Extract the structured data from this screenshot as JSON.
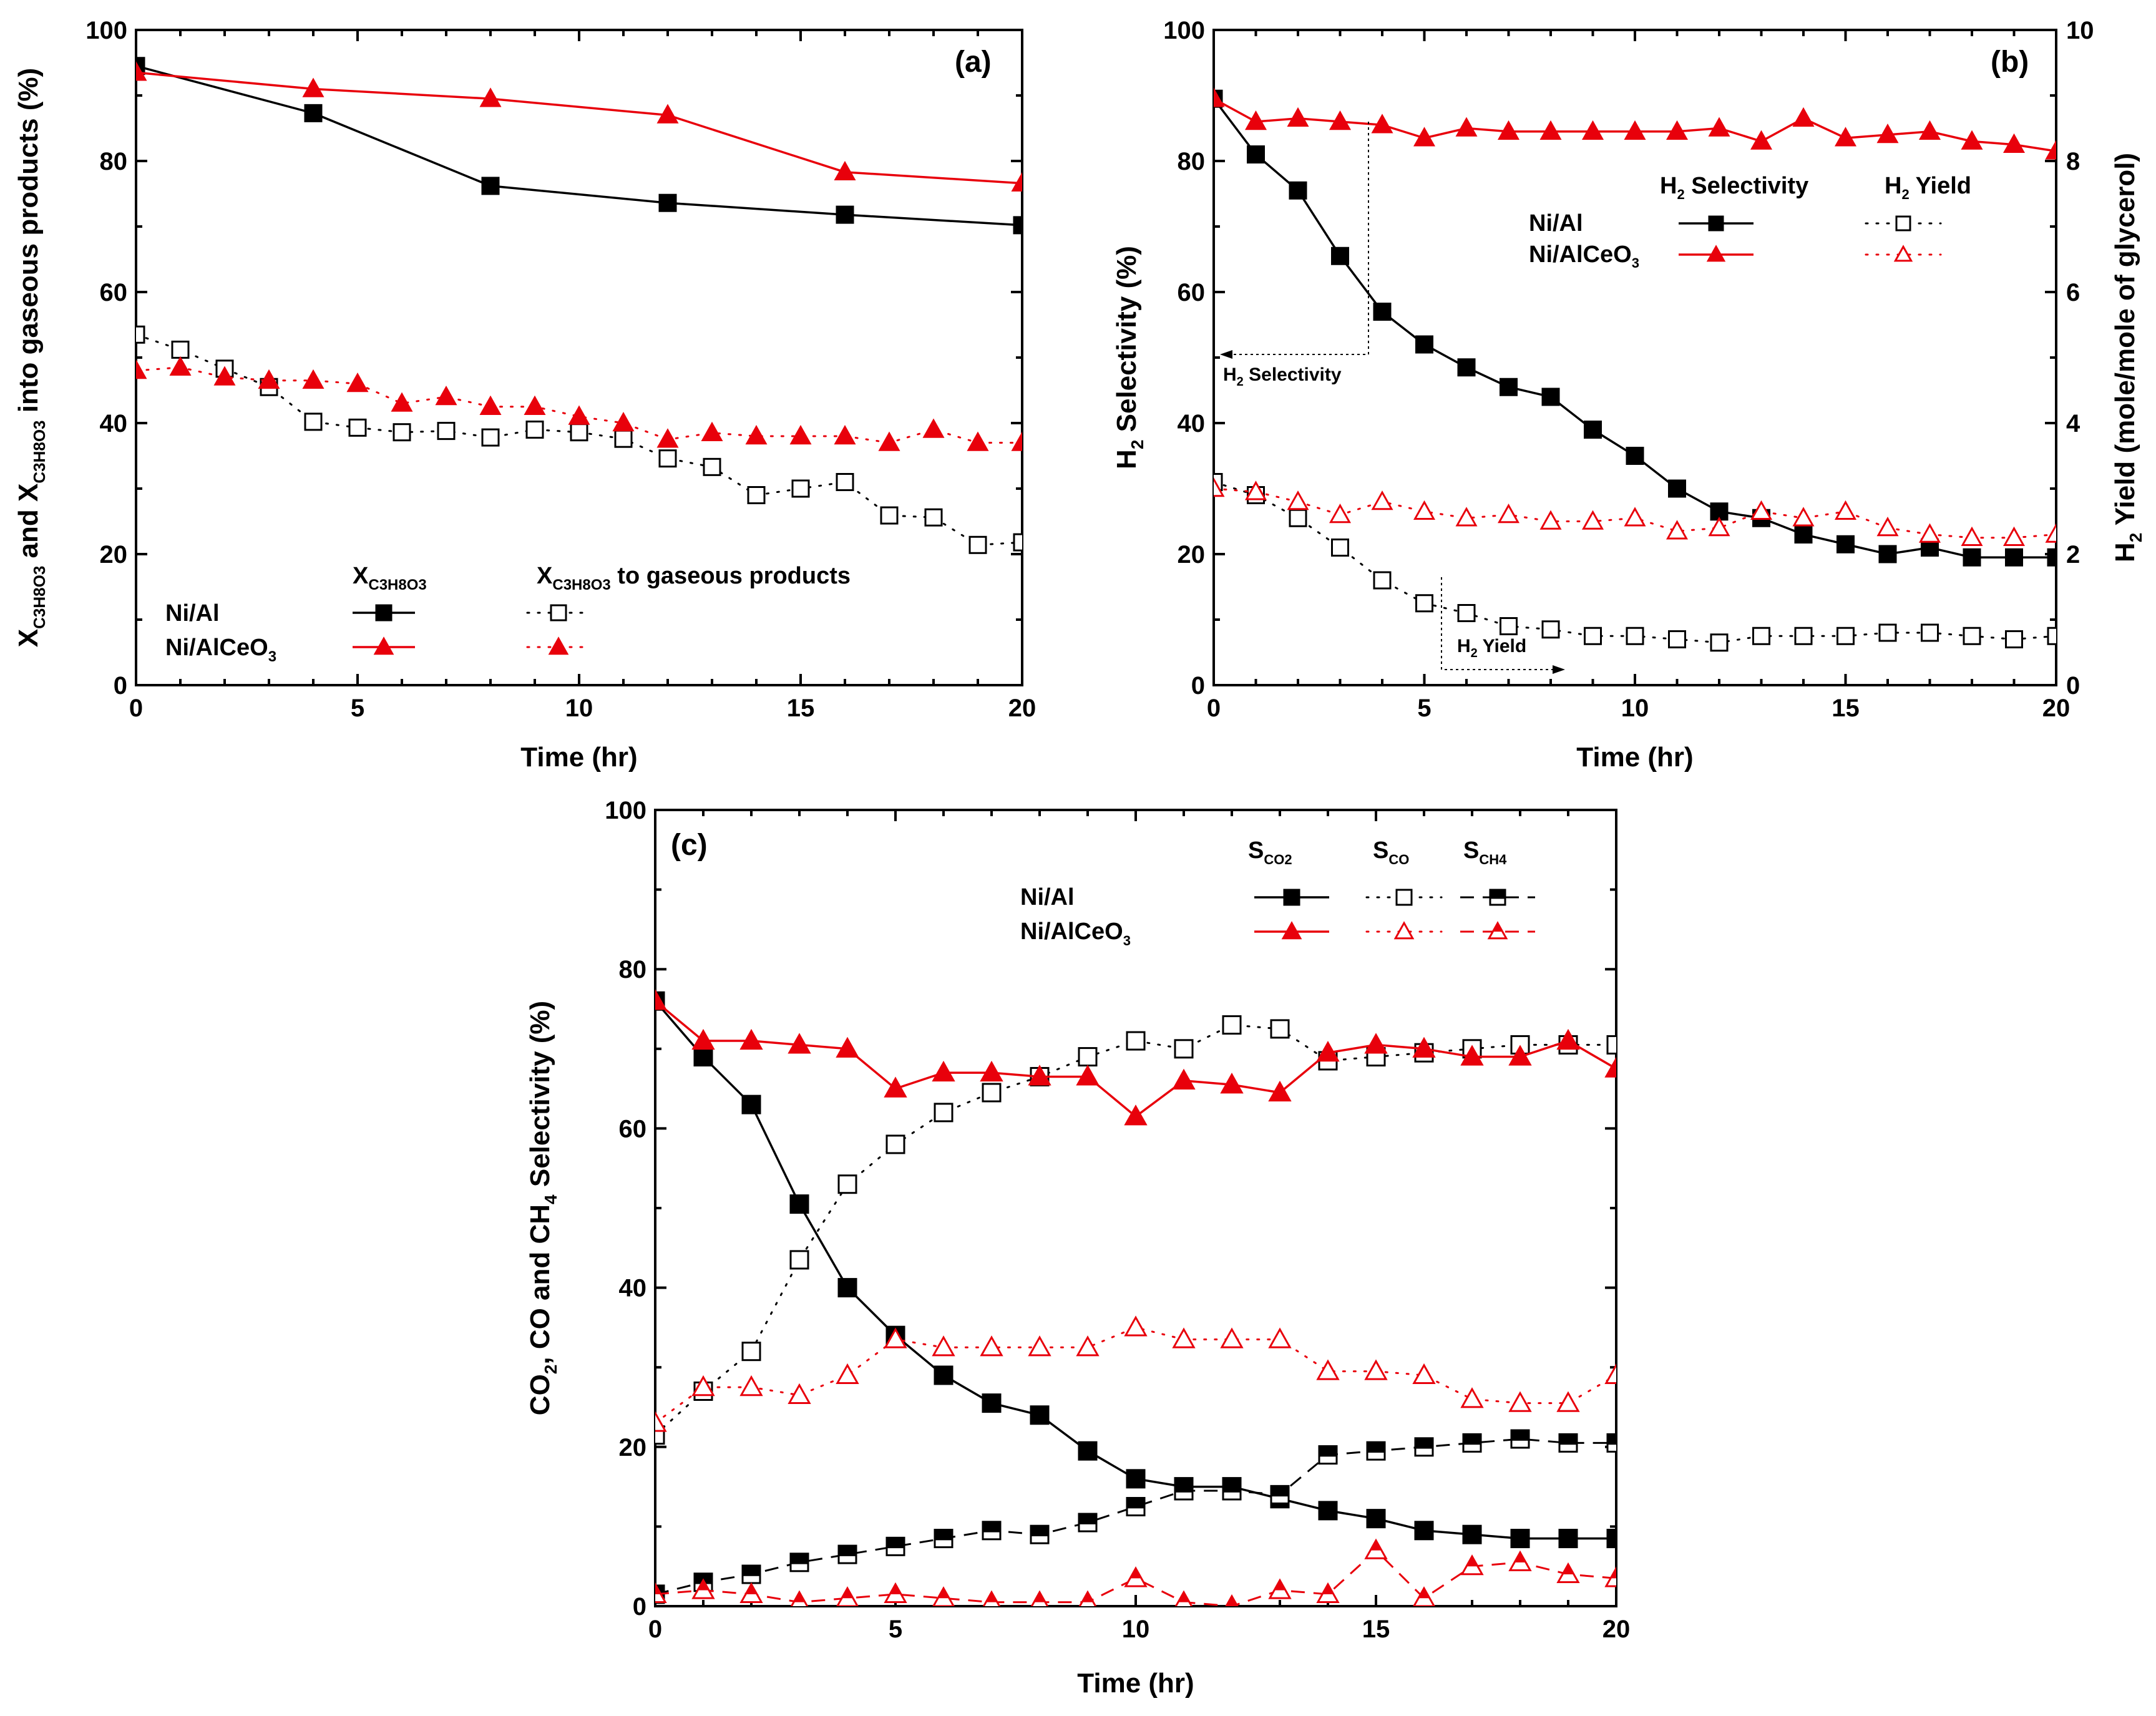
{
  "colors": {
    "black": "#000000",
    "red": "#e8000b"
  },
  "panels": {
    "a": {
      "label": "(a)",
      "xlabel": "Time (hr)",
      "ylabel_main": "X",
      "ylabel_sub1": "C3H8O3",
      "ylabel_mid": " and X",
      "ylabel_sub2": "C3H8O3",
      "ylabel_end": " into gaseous products (%)"
    },
    "b": {
      "label": "(b)",
      "xlabel": "Time (hr)",
      "ylabel": "H",
      "ylabel_sub": "2",
      "ylabel_end": " Selectivity (%)",
      "y2label": "H",
      "y2label_sub": "2",
      "y2label_end": " Yield (mole/mole of glycerol)",
      "ann_sel": "H",
      "ann_sel_sub": "2",
      "ann_sel_end": " Selectivity",
      "ann_yield": "H",
      "ann_yield_sub": "2",
      "ann_yield_end": " Yield"
    },
    "c": {
      "label": "(c)",
      "xlabel": "Time (hr)",
      "ylabel_a": "CO",
      "ylabel_sub1": "2",
      "ylabel_b": ", CO and CH",
      "ylabel_sub2": "4",
      "ylabel_c": " Selectivity (%)"
    }
  },
  "legend": {
    "a": {
      "catalyst1": "Ni/Al",
      "catalyst2": "Ni/AlCeO",
      "catalyst2_sub": "3",
      "col1": "X",
      "col1_sub": "C3H8O3",
      "col2": "X",
      "col2_sub": "C3H8O3",
      "col2_end": " to gaseous products"
    },
    "b": {
      "catalyst1": "Ni/Al",
      "catalyst2": "Ni/AlCeO",
      "catalyst2_sub": "3",
      "col1": "H",
      "col1_sub": "2",
      "col1_end": " Selectivity",
      "col2": "H",
      "col2_sub": "2",
      "col2_end": " Yield"
    },
    "c": {
      "catalyst1": "Ni/Al",
      "catalyst2": "Ni/AlCeO",
      "catalyst2_sub": "3",
      "col1": "S",
      "col1_sub": "CO2",
      "col2": "S",
      "col2_sub": "CO",
      "col3": "S",
      "col3_sub": "CH4"
    }
  },
  "chart_data": [
    {
      "panel": "a",
      "type": "line",
      "title": "(a)",
      "xlabel": "Time (hr)",
      "ylabel": "X_C3H8O3 and X_C3H8O3 into gaseous products (%)",
      "xlim": [
        0,
        20
      ],
      "ylim": [
        0,
        100
      ],
      "xticks": [
        0,
        5,
        10,
        15,
        20
      ],
      "yticks": [
        0,
        20,
        40,
        60,
        80,
        100
      ],
      "series": [
        {
          "name": "Ni/Al X_C3H8O3",
          "marker": "filled-square",
          "color": "#000000",
          "line": "solid",
          "x": [
            0,
            4,
            8,
            12,
            16,
            20
          ],
          "y": [
            94.5,
            87.3,
            76.2,
            73.6,
            71.8,
            70.2
          ]
        },
        {
          "name": "Ni/AlCeO3 X_C3H8O3",
          "marker": "filled-triangle",
          "color": "#e8000b",
          "line": "solid",
          "x": [
            0,
            4,
            8,
            12,
            16,
            20
          ],
          "y": [
            93.5,
            91.0,
            89.5,
            87.0,
            78.3,
            76.6
          ]
        },
        {
          "name": "Ni/Al X_C3H8O3 to gaseous products",
          "marker": "open-square",
          "color": "#000000",
          "line": "dotted",
          "x": [
            0,
            1,
            2,
            3,
            4,
            5,
            6,
            7,
            8,
            9,
            10,
            11,
            12,
            13,
            14,
            15,
            16,
            17,
            18,
            19,
            20
          ],
          "y": [
            53.5,
            51.2,
            48.3,
            45.5,
            40.2,
            39.3,
            38.6,
            38.8,
            37.8,
            39.0,
            38.6,
            37.6,
            34.6,
            33.3,
            29.0,
            30.0,
            31.0,
            25.9,
            25.6,
            21.4,
            21.8
          ]
        },
        {
          "name": "Ni/AlCeO3 X_C3H8O3 to gaseous products",
          "marker": "filled-triangle",
          "color": "#e8000b",
          "line": "dotted",
          "x": [
            0,
            1,
            2,
            3,
            4,
            5,
            6,
            7,
            8,
            9,
            10,
            11,
            12,
            13,
            14,
            15,
            16,
            17,
            18,
            19,
            20
          ],
          "y": [
            48.0,
            48.5,
            47.0,
            46.5,
            46.5,
            46.0,
            43.0,
            44.0,
            42.5,
            42.5,
            41.0,
            40.0,
            37.5,
            38.5,
            38.0,
            38.0,
            38.0,
            37.0,
            39.0,
            37.0,
            37.0
          ]
        }
      ]
    },
    {
      "panel": "b",
      "type": "line",
      "title": "(b)",
      "xlabel": "Time (hr)",
      "ylabel": "H2 Selectivity (%)",
      "y2label": "H2 Yield (mole/mole of glycerol)",
      "xlim": [
        0,
        20
      ],
      "ylim": [
        0,
        100
      ],
      "y2lim": [
        0,
        10
      ],
      "xticks": [
        0,
        5,
        10,
        15,
        20
      ],
      "yticks": [
        0,
        20,
        40,
        60,
        80,
        100
      ],
      "y2ticks": [
        0,
        2,
        4,
        6,
        8,
        10
      ],
      "series": [
        {
          "name": "Ni/Al H2 Selectivity",
          "axis": "left",
          "marker": "filled-square",
          "color": "#000000",
          "line": "solid",
          "x": [
            0,
            1,
            2,
            3,
            4,
            5,
            6,
            7,
            8,
            9,
            10,
            11,
            12,
            13,
            14,
            15,
            16,
            17,
            18,
            19,
            20
          ],
          "y": [
            89.5,
            81.0,
            75.5,
            65.5,
            57.0,
            52.0,
            48.5,
            45.5,
            44.0,
            39.0,
            35.0,
            30.0,
            26.5,
            25.5,
            23.0,
            21.5,
            20.0,
            21.0,
            19.5,
            19.5,
            19.5
          ]
        },
        {
          "name": "Ni/AlCeO3 H2 Selectivity",
          "axis": "left",
          "marker": "filled-triangle",
          "color": "#e8000b",
          "line": "solid",
          "x": [
            0,
            1,
            2,
            3,
            4,
            5,
            6,
            7,
            8,
            9,
            10,
            11,
            12,
            13,
            14,
            15,
            16,
            17,
            18,
            19,
            20
          ],
          "y": [
            89.5,
            86.0,
            86.5,
            86.0,
            85.5,
            83.5,
            85.0,
            84.5,
            84.5,
            84.5,
            84.5,
            84.5,
            85.0,
            83.0,
            86.5,
            83.5,
            84.0,
            84.5,
            83.0,
            82.5,
            81.5
          ]
        },
        {
          "name": "Ni/Al H2 Yield",
          "axis": "right",
          "marker": "open-square",
          "color": "#000000",
          "line": "dotted",
          "x": [
            0,
            1,
            2,
            3,
            4,
            5,
            6,
            7,
            8,
            9,
            10,
            11,
            12,
            13,
            14,
            15,
            16,
            17,
            18,
            19,
            20
          ],
          "y": [
            3.1,
            2.9,
            2.55,
            2.1,
            1.6,
            1.25,
            1.1,
            0.9,
            0.85,
            0.75,
            0.75,
            0.7,
            0.65,
            0.75,
            0.75,
            0.75,
            0.8,
            0.8,
            0.75,
            0.7,
            0.75
          ]
        },
        {
          "name": "Ni/AlCeO3 H2 Yield",
          "axis": "right",
          "marker": "open-triangle",
          "color": "#e8000b",
          "line": "dotted",
          "x": [
            0,
            1,
            2,
            3,
            4,
            5,
            6,
            7,
            8,
            9,
            10,
            11,
            12,
            13,
            14,
            15,
            16,
            17,
            18,
            19,
            20
          ],
          "y": [
            3.0,
            2.95,
            2.8,
            2.6,
            2.8,
            2.65,
            2.55,
            2.6,
            2.5,
            2.5,
            2.55,
            2.35,
            2.4,
            2.65,
            2.55,
            2.65,
            2.4,
            2.3,
            2.25,
            2.25,
            2.3
          ]
        }
      ]
    },
    {
      "panel": "c",
      "type": "line",
      "title": "(c)",
      "xlabel": "Time (hr)",
      "ylabel": "CO2, CO and CH4 Selectivity (%)",
      "xlim": [
        0,
        20
      ],
      "ylim": [
        0,
        100
      ],
      "xticks": [
        0,
        5,
        10,
        15,
        20
      ],
      "yticks": [
        0,
        20,
        40,
        60,
        80,
        100
      ],
      "series": [
        {
          "name": "Ni/Al S_CO2",
          "marker": "filled-square",
          "color": "#000000",
          "line": "solid",
          "x": [
            0,
            1,
            2,
            3,
            4,
            5,
            6,
            7,
            8,
            9,
            10,
            11,
            12,
            13,
            14,
            15,
            16,
            17,
            18,
            19,
            20
          ],
          "y": [
            76.0,
            69.0,
            63.0,
            50.5,
            40.0,
            34.0,
            29.0,
            25.5,
            24.0,
            19.5,
            16.0,
            15.0,
            15.0,
            13.5,
            12.0,
            11.0,
            9.5,
            9.0,
            8.5,
            8.5,
            8.5
          ]
        },
        {
          "name": "Ni/Al S_CO",
          "marker": "open-square",
          "color": "#000000",
          "line": "dotted",
          "x": [
            0,
            1,
            2,
            3,
            4,
            5,
            6,
            7,
            8,
            9,
            10,
            11,
            12,
            13,
            14,
            15,
            16,
            17,
            18,
            19,
            20
          ],
          "y": [
            21.5,
            27.0,
            32.0,
            43.5,
            53.0,
            58.0,
            62.0,
            64.5,
            66.5,
            69.0,
            71.0,
            70.0,
            73.0,
            72.5,
            68.5,
            69.0,
            69.5,
            70.0,
            70.5,
            70.5,
            70.5
          ]
        },
        {
          "name": "Ni/Al S_CH4",
          "marker": "half-filled-square",
          "color": "#000000",
          "line": "dashed",
          "x": [
            0,
            1,
            2,
            3,
            4,
            5,
            6,
            7,
            8,
            9,
            10,
            11,
            12,
            13,
            14,
            15,
            16,
            17,
            18,
            19,
            20
          ],
          "y": [
            1.5,
            3.0,
            4.0,
            5.5,
            6.5,
            7.5,
            8.5,
            9.5,
            9.0,
            10.5,
            12.5,
            14.5,
            14.5,
            14.0,
            19.0,
            19.5,
            20.0,
            20.5,
            21.0,
            20.5,
            20.5
          ]
        },
        {
          "name": "Ni/AlCeO3 S_CO2",
          "marker": "filled-triangle",
          "color": "#e8000b",
          "line": "solid",
          "x": [
            0,
            1,
            2,
            3,
            4,
            5,
            6,
            7,
            8,
            9,
            10,
            11,
            12,
            13,
            14,
            15,
            16,
            17,
            18,
            19,
            20
          ],
          "y": [
            76.0,
            71.0,
            71.0,
            70.5,
            70.0,
            65.0,
            67.0,
            67.0,
            66.5,
            66.5,
            61.5,
            66.0,
            65.5,
            64.5,
            69.5,
            70.5,
            70.0,
            69.0,
            69.0,
            71.0,
            67.5
          ]
        },
        {
          "name": "Ni/AlCeO3 S_CO",
          "marker": "open-triangle",
          "color": "#e8000b",
          "line": "dotted",
          "x": [
            0,
            1,
            2,
            3,
            4,
            5,
            6,
            7,
            8,
            9,
            10,
            11,
            12,
            13,
            14,
            15,
            16,
            17,
            18,
            19,
            20
          ],
          "y": [
            23.0,
            27.5,
            27.5,
            26.5,
            29.0,
            33.5,
            32.5,
            32.5,
            32.5,
            32.5,
            35.0,
            33.5,
            33.5,
            33.5,
            29.5,
            29.5,
            29.0,
            26.0,
            25.5,
            25.5,
            29.0
          ]
        },
        {
          "name": "Ni/AlCeO3 S_CH4",
          "marker": "half-filled-triangle",
          "color": "#e8000b",
          "line": "dashed",
          "x": [
            0,
            1,
            2,
            3,
            4,
            5,
            6,
            7,
            8,
            9,
            10,
            11,
            12,
            13,
            14,
            15,
            16,
            17,
            18,
            19,
            20
          ],
          "y": [
            1.5,
            2.0,
            1.5,
            0.5,
            1.0,
            1.5,
            1.0,
            0.5,
            0.5,
            0.5,
            3.5,
            0.5,
            0.0,
            2.0,
            1.5,
            7.0,
            1.0,
            5.0,
            5.5,
            4.0,
            3.5
          ]
        }
      ]
    }
  ]
}
